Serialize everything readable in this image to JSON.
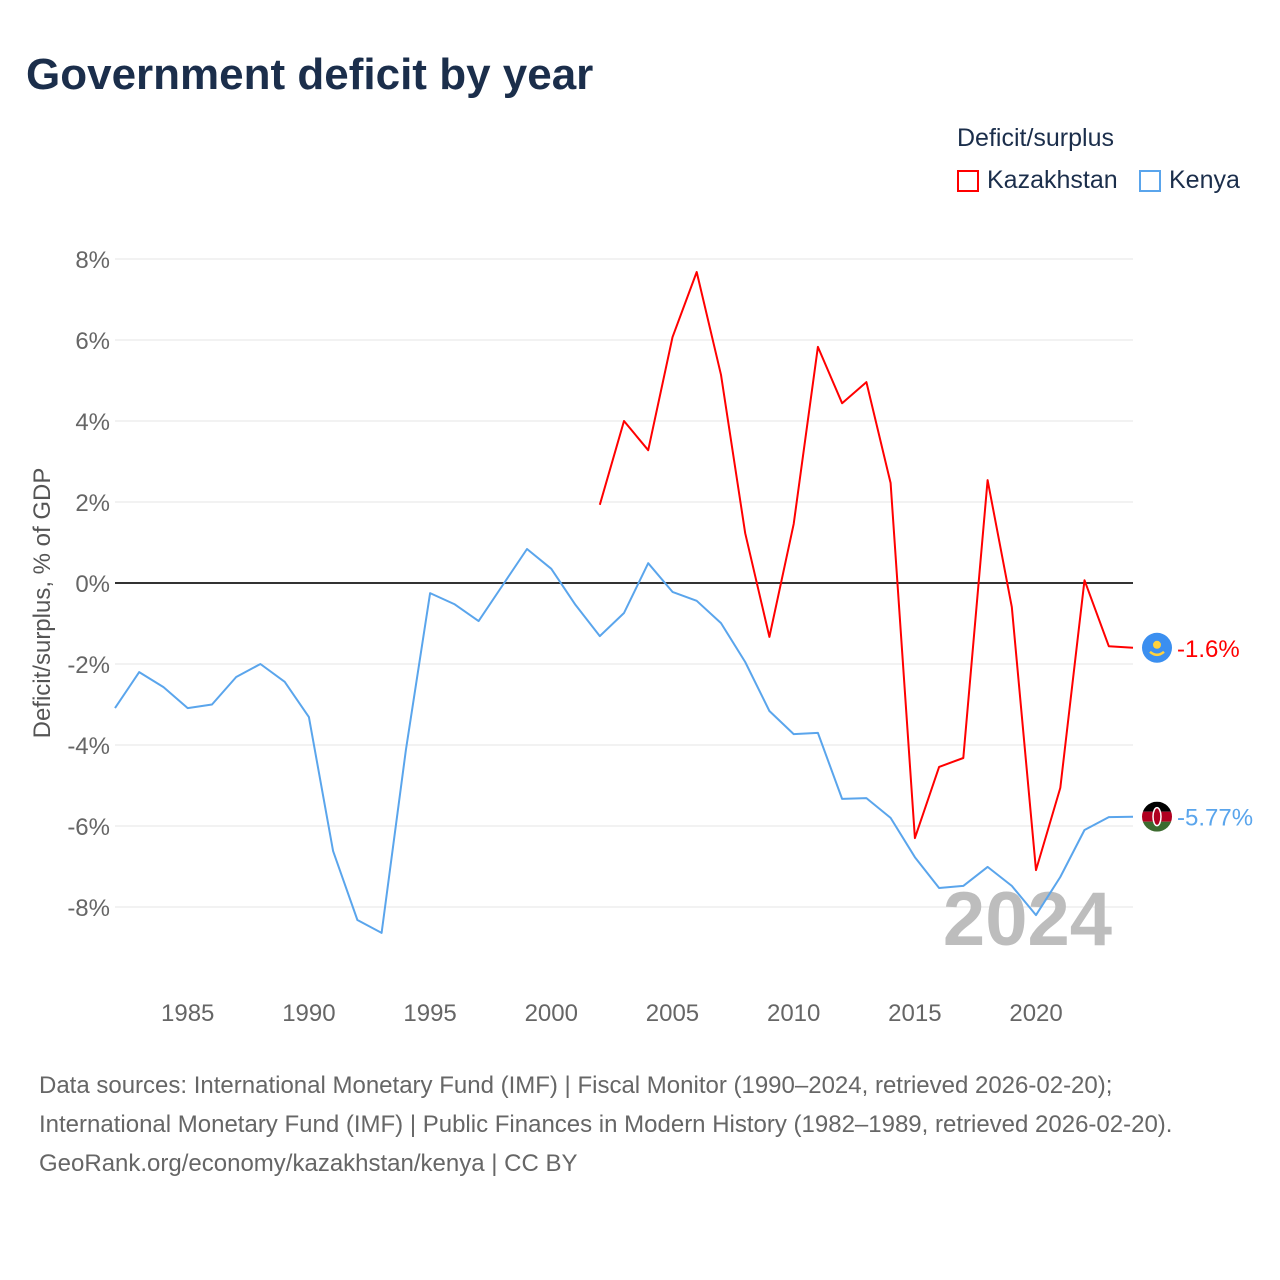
{
  "title": "Government deficit by year",
  "legend": {
    "title": "Deficit/surplus",
    "items": [
      {
        "label": "Kazakhstan",
        "color": "#ff0000"
      },
      {
        "label": "Kenya",
        "color": "#5aa5ec"
      }
    ]
  },
  "year_watermark": "2024",
  "footer": {
    "sources": "Data sources: International Monetary Fund (IMF) | Fiscal Monitor (1990–2024, retrieved 2026-02-20); International Monetary Fund (IMF) | Public Finances in Modern History (1982–1989, retrieved 2026-02-20).",
    "credit": "GeoRank.org/economy/kazakhstan/kenya | CC BY"
  },
  "chart_data": {
    "type": "line",
    "title": "Government deficit by year",
    "xlabel": "",
    "ylabel": "Deficit/surplus, % of GDP",
    "xlim": [
      1982,
      2024
    ],
    "ylim": [
      -10,
      8
    ],
    "xticks": [
      1985,
      1990,
      1995,
      2000,
      2005,
      2010,
      2015,
      2020
    ],
    "yticks": [
      8,
      6,
      4,
      2,
      0,
      -2,
      -4,
      -6,
      -8
    ],
    "ytick_labels": [
      "8%",
      "6%",
      "4%",
      "2%",
      "0%",
      "-2%",
      "-4%",
      "-6%",
      "-8%"
    ],
    "grid": true,
    "legend_position": "top-right",
    "series": [
      {
        "name": "Kazakhstan",
        "color": "#ff0000",
        "end_label": "-1.6%",
        "x": [
          2002,
          2003,
          2004,
          2005,
          2006,
          2007,
          2008,
          2009,
          2010,
          2011,
          2012,
          2013,
          2014,
          2015,
          2016,
          2017,
          2018,
          2019,
          2020,
          2021,
          2022,
          2023,
          2024
        ],
        "values": [
          1.93,
          4.0,
          3.28,
          6.07,
          7.68,
          5.14,
          1.23,
          -1.33,
          1.46,
          5.83,
          4.44,
          4.96,
          2.47,
          -6.3,
          -4.54,
          -4.32,
          2.54,
          -0.59,
          -7.09,
          -5.06,
          0.07,
          -1.56,
          -1.6
        ]
      },
      {
        "name": "Kenya",
        "color": "#5aa5ec",
        "end_label": "-5.77%",
        "x": [
          1982,
          1983,
          1984,
          1985,
          1986,
          1987,
          1988,
          1989,
          1990,
          1991,
          1992,
          1993,
          1994,
          1995,
          1996,
          1997,
          1998,
          1999,
          2000,
          2001,
          2002,
          2003,
          2004,
          2005,
          2006,
          2007,
          2008,
          2009,
          2010,
          2011,
          2012,
          2013,
          2014,
          2015,
          2016,
          2017,
          2018,
          2019,
          2020,
          2021,
          2022,
          2023,
          2024
        ],
        "values": [
          -3.09,
          -2.2,
          -2.57,
          -3.09,
          -3.0,
          -2.32,
          -2.0,
          -2.44,
          -3.31,
          -6.62,
          -8.32,
          -8.64,
          -4.12,
          -0.25,
          -0.52,
          -0.94,
          -0.05,
          0.84,
          0.35,
          -0.54,
          -1.31,
          -0.74,
          0.49,
          -0.22,
          -0.44,
          -0.99,
          -1.95,
          -3.16,
          -3.73,
          -3.7,
          -5.33,
          -5.31,
          -5.8,
          -6.77,
          -7.53,
          -7.48,
          -7.01,
          -7.48,
          -8.2,
          -7.26,
          -6.1,
          -5.78,
          -5.77
        ]
      }
    ]
  }
}
